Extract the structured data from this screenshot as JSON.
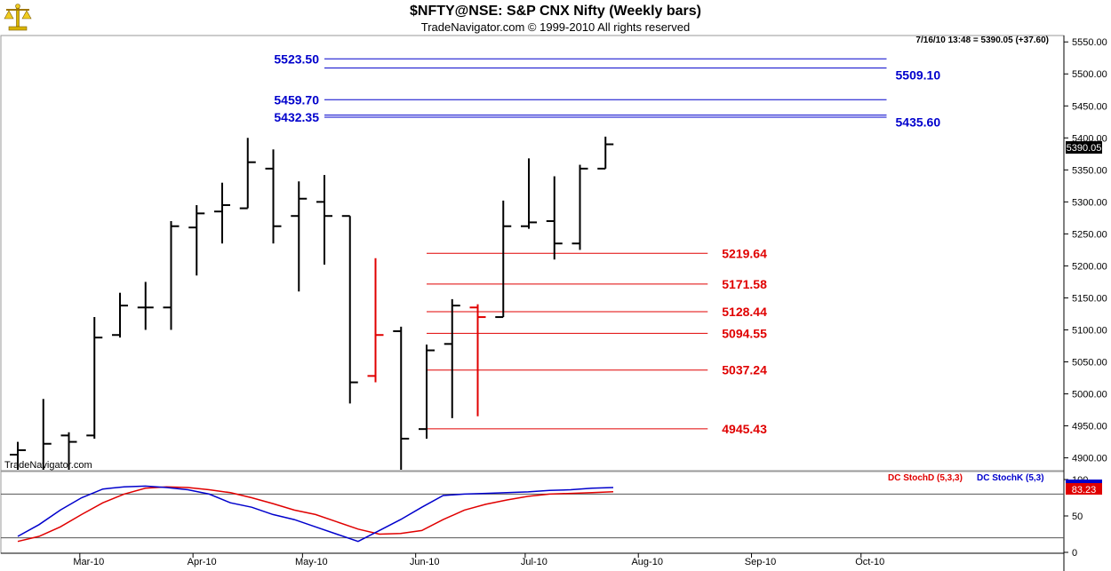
{
  "title": "$NFTY@NSE:  S&P CNX Nifty  (Weekly bars)",
  "subtitle": "TradeNavigator.com © 1999-2010 All rights reserved",
  "watermark": "TradeNavigator.com",
  "quote": "7/16/10 13:48 = 5390.05 (+37.60)",
  "last_price": "5390.05",
  "colors": {
    "bar": "#000000",
    "down_bar": "#e00000",
    "up_tick": "#00c000",
    "blue": "#0000cc",
    "red": "#e00000"
  },
  "chart_data": [
    {
      "type": "bar",
      "subtype": "ohlc",
      "x_axis": {
        "labels": [
          "Mar-10",
          "Apr-10",
          "May-10",
          "Jun-10",
          "Jul-10",
          "Aug-10",
          "Sep-10",
          "Oct-10"
        ],
        "range": [
          "2010-02-12",
          "2010-10-22"
        ]
      },
      "y_axis": {
        "min": 4900,
        "max": 5550,
        "step": 50,
        "visible_min": 4880,
        "visible_max": 5560,
        "side": "right"
      },
      "bars": [
        {
          "date": "2010-02-12",
          "open": 4905,
          "high": 4925,
          "low": 4830,
          "close": 4912
        },
        {
          "date": "2010-02-19",
          "open": 4860,
          "high": 4992,
          "low": 4850,
          "close": 4922
        },
        {
          "date": "2010-02-26",
          "open": 4935,
          "high": 4940,
          "low": 4870,
          "close": 4925
        },
        {
          "date": "2010-03-05",
          "open": 4935,
          "high": 5120,
          "low": 4930,
          "close": 5088
        },
        {
          "date": "2010-03-12",
          "open": 5092,
          "high": 5158,
          "low": 5088,
          "close": 5138
        },
        {
          "date": "2010-03-19",
          "open": 5135,
          "high": 5175,
          "low": 5100,
          "close": 5135
        },
        {
          "date": "2010-03-26",
          "open": 5135,
          "high": 5270,
          "low": 5100,
          "close": 5262
        },
        {
          "date": "2010-04-02",
          "open": 5260,
          "high": 5295,
          "low": 5185,
          "close": 5282
        },
        {
          "date": "2010-04-09",
          "open": 5285,
          "high": 5330,
          "low": 5235,
          "close": 5295
        },
        {
          "date": "2010-04-16",
          "open": 5290,
          "high": 5400,
          "low": 5290,
          "close": 5362
        },
        {
          "date": "2010-04-23",
          "open": 5352,
          "high": 5382,
          "low": 5235,
          "close": 5262
        },
        {
          "date": "2010-04-30",
          "open": 5278,
          "high": 5332,
          "low": 5160,
          "close": 5305
        },
        {
          "date": "2010-05-07",
          "open": 5300,
          "high": 5342,
          "low": 5202,
          "close": 5278
        },
        {
          "date": "2010-05-14",
          "open": 5278,
          "high": 5278,
          "low": 4985,
          "close": 5018
        },
        {
          "date": "2010-05-21",
          "open": 5028,
          "high": 5212,
          "low": 5018,
          "close": 5092,
          "down": true
        },
        {
          "date": "2010-05-28",
          "open": 5098,
          "high": 5105,
          "low": 4800,
          "close": 4930
        },
        {
          "date": "2010-06-04",
          "open": 4945,
          "high": 5077,
          "low": 4930,
          "close": 5068
        },
        {
          "date": "2010-06-11",
          "open": 5078,
          "high": 5148,
          "low": 4962,
          "close": 5138
        },
        {
          "date": "2010-06-18",
          "open": 5135,
          "high": 5140,
          "low": 4965,
          "close": 5120,
          "down": true
        },
        {
          "date": "2010-06-25",
          "open": 5120,
          "high": 5302,
          "low": 5120,
          "close": 5262
        },
        {
          "date": "2010-07-02",
          "open": 5262,
          "high": 5368,
          "low": 5258,
          "close": 5268
        },
        {
          "date": "2010-07-09",
          "open": 5270,
          "high": 5340,
          "low": 5210,
          "close": 5235
        },
        {
          "date": "2010-07-16",
          "open": 5235,
          "high": 5358,
          "low": 5225,
          "close": 5352
        },
        {
          "date": "2010-07-23",
          "open": 5352,
          "high": 5402,
          "low": 5352,
          "close": 5390
        }
      ],
      "levels": [
        {
          "value": 5523.5,
          "label": "5523.50",
          "color": "blue",
          "side": "left",
          "from": "2010-05-07",
          "to": "2010-10-08"
        },
        {
          "value": 5509.1,
          "label": "5509.10",
          "color": "blue",
          "side": "right",
          "from": "2010-05-07",
          "to": "2010-10-08"
        },
        {
          "value": 5459.7,
          "label": "5459.70",
          "color": "blue",
          "side": "left",
          "from": "2010-05-07",
          "to": "2010-10-08"
        },
        {
          "value": 5432.35,
          "label": "5432.35",
          "color": "blue",
          "side": "left",
          "from": "2010-05-07",
          "to": "2010-10-08"
        },
        {
          "value": 5435.6,
          "label": "5435.60",
          "color": "blue",
          "side": "right",
          "from": "2010-05-07",
          "to": "2010-10-08"
        },
        {
          "value": 5219.64,
          "label": "5219.64",
          "color": "red",
          "side": "right",
          "from": "2010-06-04",
          "to": "2010-08-20"
        },
        {
          "value": 5171.58,
          "label": "5171.58",
          "color": "red",
          "side": "right",
          "from": "2010-06-04",
          "to": "2010-08-20"
        },
        {
          "value": 5128.44,
          "label": "5128.44",
          "color": "red",
          "side": "right",
          "from": "2010-06-04",
          "to": "2010-08-20"
        },
        {
          "value": 5094.55,
          "label": "5094.55",
          "color": "red",
          "side": "right",
          "from": "2010-06-04",
          "to": "2010-08-20"
        },
        {
          "value": 5037.24,
          "label": "5037.24",
          "color": "red",
          "side": "right",
          "from": "2010-06-04",
          "to": "2010-08-20"
        },
        {
          "value": 4945.43,
          "label": "4945.43",
          "color": "red",
          "side": "right",
          "from": "2010-06-04",
          "to": "2010-08-20"
        }
      ]
    },
    {
      "type": "line",
      "y_axis": {
        "min": 0,
        "max": 100,
        "ticks": [
          0,
          50,
          100
        ],
        "guides": [
          20,
          80
        ]
      },
      "legend": [
        {
          "name": "DC StochD (5,3,3)",
          "color": "red"
        },
        {
          "name": "DC StochK (5,3)",
          "color": "blue"
        }
      ],
      "value_label": "83.23",
      "series": [
        {
          "name": "DC StochD (5,3,3)",
          "color": "red",
          "values": [
            15,
            22,
            35,
            52,
            68,
            80,
            88,
            90,
            89,
            86,
            82,
            75,
            67,
            58,
            52,
            42,
            32,
            25,
            26,
            30,
            45,
            58,
            66,
            72,
            77,
            80,
            81,
            82,
            83.23
          ]
        },
        {
          "name": "DC StochK (5,3)",
          "color": "blue",
          "values": [
            22,
            38,
            58,
            75,
            87,
            90,
            91,
            89,
            86,
            80,
            68,
            62,
            52,
            45,
            35,
            25,
            15,
            30,
            45,
            62,
            78,
            80,
            81,
            82,
            83,
            85,
            86,
            88,
            89
          ]
        }
      ]
    }
  ]
}
